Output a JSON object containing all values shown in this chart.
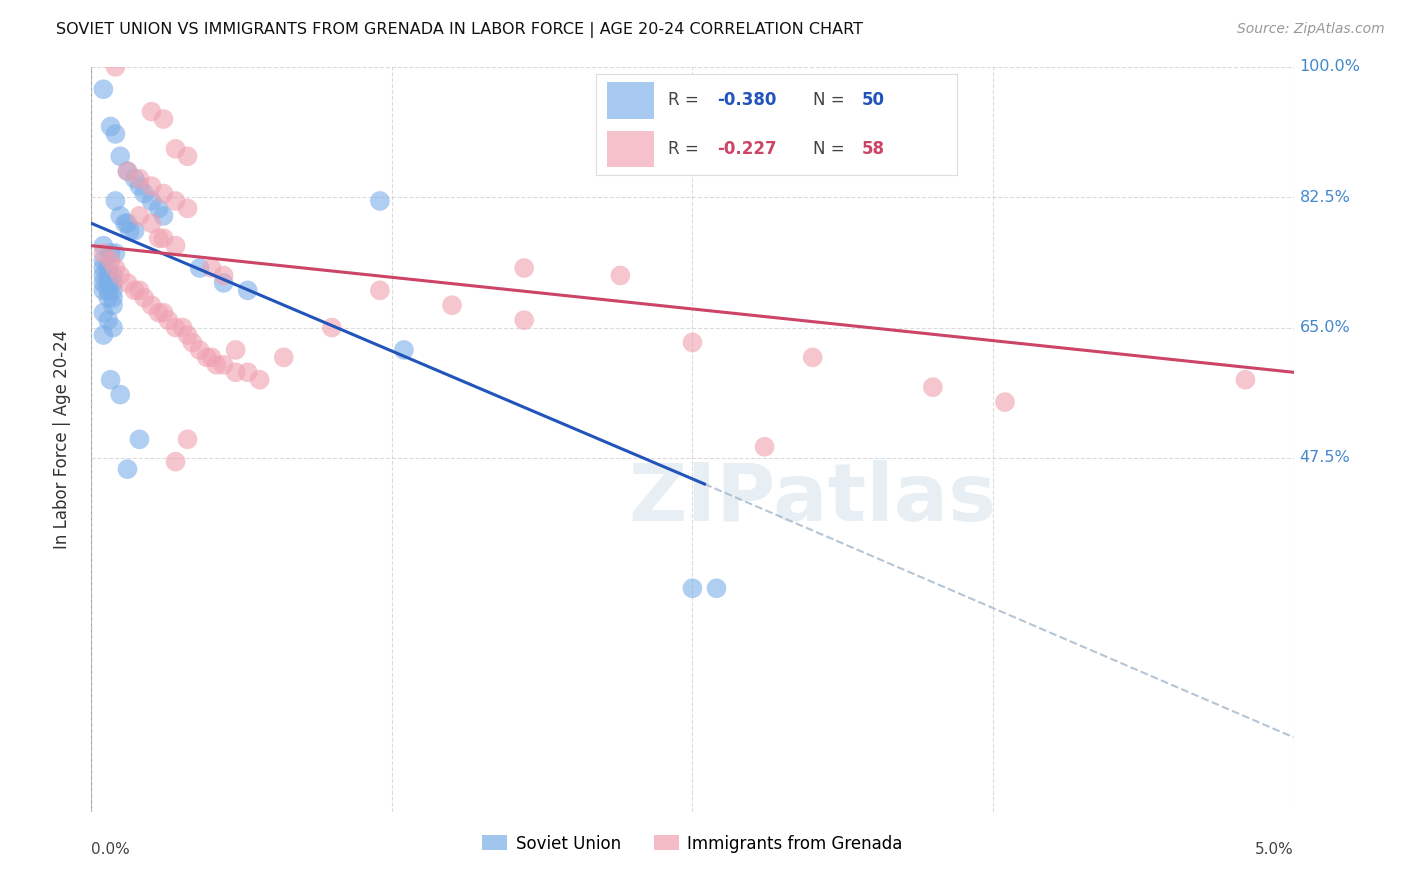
{
  "title": "SOVIET UNION VS IMMIGRANTS FROM GRENADA IN LABOR FORCE | AGE 20-24 CORRELATION CHART",
  "source": "Source: ZipAtlas.com",
  "ylabel": "In Labor Force | Age 20-24",
  "xlim": [
    0.0,
    5.0
  ],
  "ylim": [
    0.0,
    1.0
  ],
  "yticks_right": [
    1.0,
    0.825,
    0.65,
    0.475
  ],
  "ytick_labels_right": [
    "100.0%",
    "82.5%",
    "65.0%",
    "47.5%"
  ],
  "xticks": [
    0.0,
    1.25,
    2.5,
    3.75,
    5.0
  ],
  "grid_color": "#cccccc",
  "background_color": "#ffffff",
  "blue_color": "#7aaee8",
  "pink_color": "#f0a0b0",
  "trend_blue": "#2255bb",
  "trend_pink": "#cc4466",
  "trend_dashed_color": "#aabbcc",
  "soviet_points": [
    [
      0.05,
      0.97
    ],
    [
      0.1,
      0.91
    ],
    [
      0.12,
      0.88
    ],
    [
      0.15,
      0.86
    ],
    [
      0.18,
      0.85
    ],
    [
      0.2,
      0.84
    ],
    [
      0.22,
      0.83
    ],
    [
      0.25,
      0.82
    ],
    [
      0.08,
      0.92
    ],
    [
      0.28,
      0.81
    ],
    [
      0.3,
      0.8
    ],
    [
      0.15,
      0.79
    ],
    [
      0.18,
      0.78
    ],
    [
      0.1,
      0.82
    ],
    [
      0.12,
      0.8
    ],
    [
      0.14,
      0.79
    ],
    [
      0.16,
      0.78
    ],
    [
      0.05,
      0.76
    ],
    [
      0.08,
      0.75
    ],
    [
      0.1,
      0.75
    ],
    [
      0.05,
      0.74
    ],
    [
      0.07,
      0.73
    ],
    [
      0.09,
      0.72
    ],
    [
      0.05,
      0.73
    ],
    [
      0.07,
      0.72
    ],
    [
      0.09,
      0.71
    ],
    [
      0.05,
      0.72
    ],
    [
      0.07,
      0.71
    ],
    [
      0.09,
      0.7
    ],
    [
      0.05,
      0.71
    ],
    [
      0.07,
      0.7
    ],
    [
      0.09,
      0.69
    ],
    [
      0.05,
      0.7
    ],
    [
      0.07,
      0.69
    ],
    [
      0.09,
      0.68
    ],
    [
      0.05,
      0.67
    ],
    [
      0.07,
      0.66
    ],
    [
      0.09,
      0.65
    ],
    [
      0.05,
      0.64
    ],
    [
      0.45,
      0.73
    ],
    [
      0.55,
      0.71
    ],
    [
      0.65,
      0.7
    ],
    [
      1.3,
      0.62
    ],
    [
      0.08,
      0.58
    ],
    [
      0.12,
      0.56
    ],
    [
      2.5,
      0.3
    ],
    [
      2.6,
      0.3
    ],
    [
      0.2,
      0.5
    ],
    [
      0.15,
      0.46
    ],
    [
      1.2,
      0.82
    ]
  ],
  "grenada_points": [
    [
      0.1,
      1.0
    ],
    [
      0.25,
      0.94
    ],
    [
      0.3,
      0.93
    ],
    [
      0.35,
      0.89
    ],
    [
      0.4,
      0.88
    ],
    [
      0.15,
      0.86
    ],
    [
      0.2,
      0.85
    ],
    [
      0.25,
      0.84
    ],
    [
      0.3,
      0.83
    ],
    [
      0.35,
      0.82
    ],
    [
      0.4,
      0.81
    ],
    [
      0.2,
      0.8
    ],
    [
      0.25,
      0.79
    ],
    [
      0.3,
      0.77
    ],
    [
      0.35,
      0.76
    ],
    [
      0.05,
      0.75
    ],
    [
      0.08,
      0.74
    ],
    [
      0.1,
      0.73
    ],
    [
      0.12,
      0.72
    ],
    [
      0.15,
      0.71
    ],
    [
      0.18,
      0.7
    ],
    [
      0.2,
      0.7
    ],
    [
      0.22,
      0.69
    ],
    [
      0.25,
      0.68
    ],
    [
      0.28,
      0.67
    ],
    [
      0.3,
      0.67
    ],
    [
      0.32,
      0.66
    ],
    [
      0.35,
      0.65
    ],
    [
      0.38,
      0.65
    ],
    [
      0.4,
      0.64
    ],
    [
      0.42,
      0.63
    ],
    [
      0.45,
      0.62
    ],
    [
      0.48,
      0.61
    ],
    [
      0.5,
      0.61
    ],
    [
      0.52,
      0.6
    ],
    [
      0.55,
      0.6
    ],
    [
      0.6,
      0.59
    ],
    [
      0.65,
      0.59
    ],
    [
      0.7,
      0.58
    ],
    [
      0.28,
      0.77
    ],
    [
      0.5,
      0.73
    ],
    [
      0.55,
      0.72
    ],
    [
      1.2,
      0.7
    ],
    [
      1.5,
      0.68
    ],
    [
      1.8,
      0.66
    ],
    [
      2.5,
      0.63
    ],
    [
      3.0,
      0.61
    ],
    [
      3.5,
      0.57
    ],
    [
      4.8,
      0.58
    ],
    [
      3.8,
      0.55
    ],
    [
      2.8,
      0.49
    ],
    [
      0.35,
      0.47
    ],
    [
      1.8,
      0.73
    ],
    [
      0.6,
      0.62
    ],
    [
      0.8,
      0.61
    ],
    [
      1.0,
      0.65
    ],
    [
      2.2,
      0.72
    ],
    [
      0.4,
      0.5
    ]
  ],
  "blue_trend_x": [
    0.0,
    2.55
  ],
  "blue_trend_y": [
    0.79,
    0.44
  ],
  "pink_trend_x": [
    0.0,
    5.0
  ],
  "pink_trend_y": [
    0.76,
    0.59
  ],
  "dashed_trend_x": [
    2.55,
    5.0
  ],
  "dashed_trend_y": [
    0.44,
    0.1
  ]
}
